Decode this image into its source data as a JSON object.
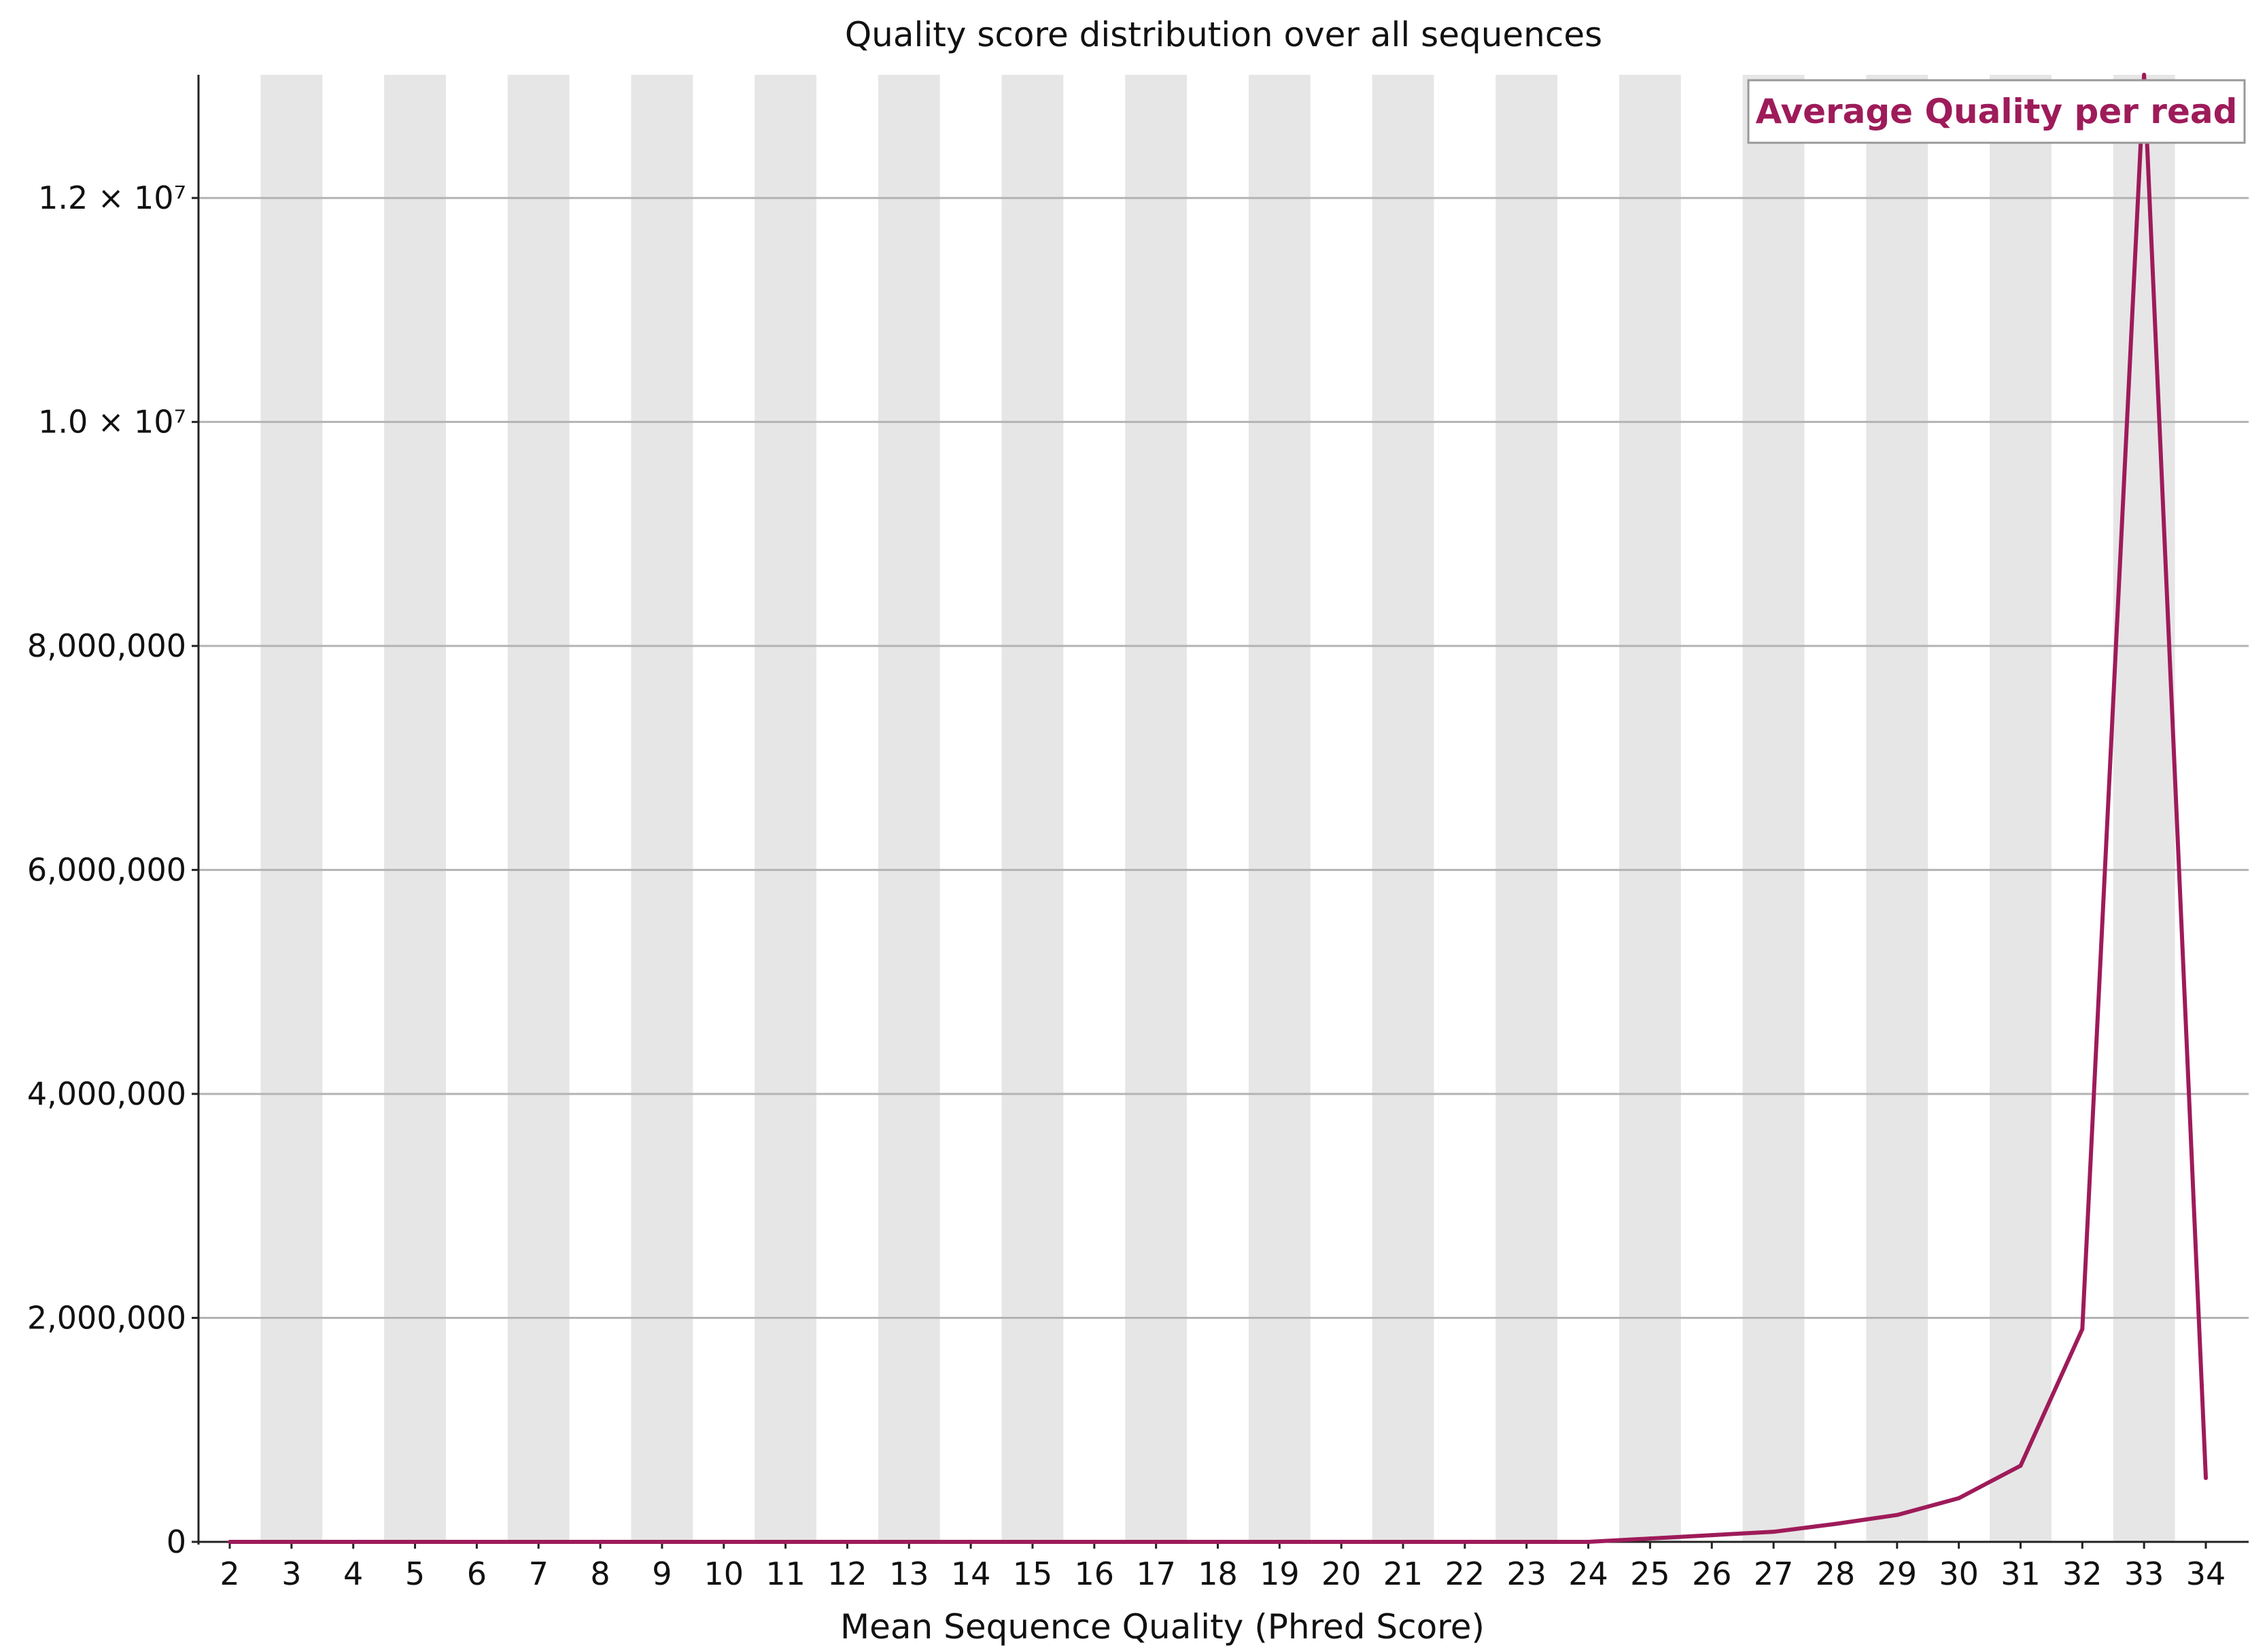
{
  "chart_data": {
    "type": "line",
    "title": "Quality score distribution over all sequences",
    "xlabel": "Mean Sequence Quality (Phred Score)",
    "ylabel": "",
    "x": [
      2,
      3,
      4,
      5,
      6,
      7,
      8,
      9,
      10,
      11,
      12,
      13,
      14,
      15,
      16,
      17,
      18,
      19,
      20,
      21,
      22,
      23,
      24,
      25,
      26,
      27,
      28,
      29,
      30,
      31,
      32,
      33,
      34
    ],
    "series": [
      {
        "name": "Average Quality per read",
        "color": "#9e1b5a",
        "values": [
          0,
          0,
          0,
          0,
          0,
          0,
          0,
          0,
          0,
          0,
          0,
          0,
          0,
          0,
          0,
          0,
          0,
          0,
          0,
          0,
          0,
          0,
          0,
          30000,
          60000,
          90000,
          160000,
          240000,
          390000,
          680000,
          1900000,
          13100000,
          570000
        ]
      }
    ],
    "ylim": [
      0,
      13100000
    ],
    "yticks": [
      {
        "value": 0,
        "label": "0"
      },
      {
        "value": 2000000,
        "label": "2,000,000"
      },
      {
        "value": 4000000,
        "label": "4,000,000"
      },
      {
        "value": 6000000,
        "label": "6,000,000"
      },
      {
        "value": 8000000,
        "label": "8,000,000"
      },
      {
        "value": 10000000,
        "label": "1.0 × 10⁷"
      },
      {
        "value": 12000000,
        "label": "1.2 × 10⁷"
      }
    ],
    "xticklabels": [
      "2",
      "3",
      "4",
      "5",
      "6",
      "7",
      "8",
      "9",
      "10",
      "11",
      "12",
      "13",
      "14",
      "15",
      "16",
      "17",
      "18",
      "19",
      "20",
      "21",
      "22",
      "23",
      "24",
      "25",
      "26",
      "27",
      "28",
      "29",
      "30",
      "31",
      "32",
      "33",
      "34"
    ],
    "grid": true,
    "alternating_bands": true,
    "band_color": "#e6e6e6",
    "legend_position": "top-right"
  }
}
